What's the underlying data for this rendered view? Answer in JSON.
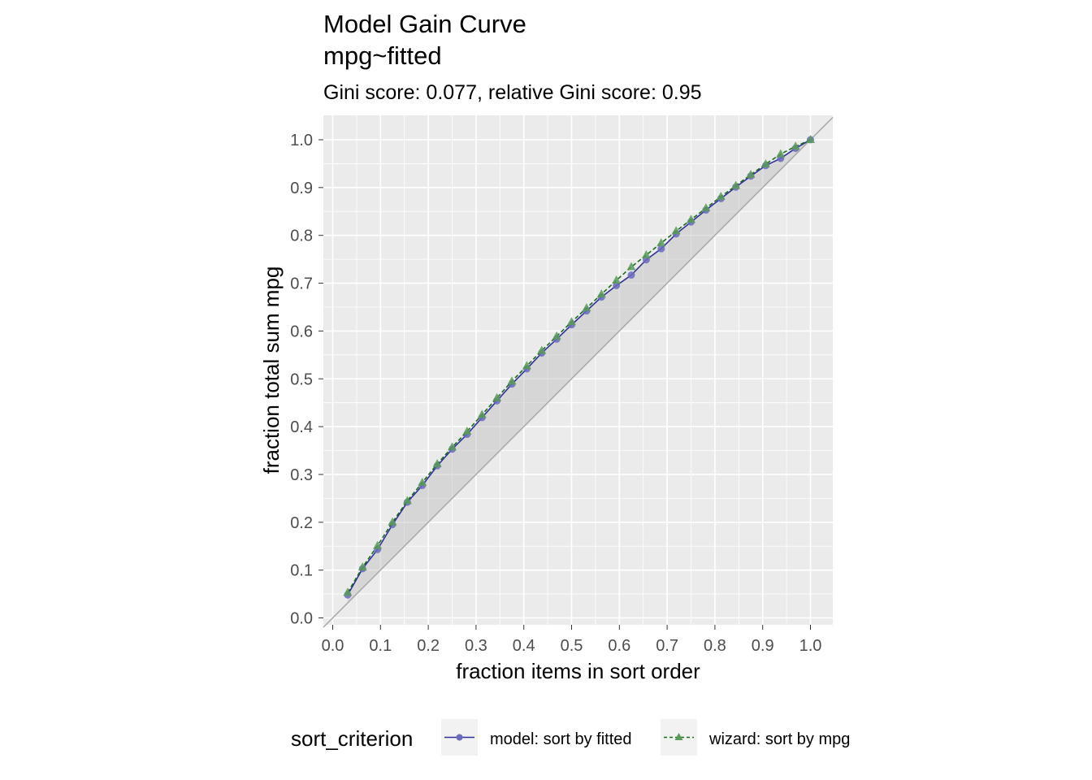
{
  "chart_data": {
    "type": "line",
    "title": "Model Gain Curve",
    "title_line2": "mpg~fitted",
    "subtitle": "Gini score: 0.077, relative Gini score: 0.95",
    "xlabel": "fraction items in sort order",
    "ylabel": "fraction total sum mpg",
    "xlim": [
      0,
      1
    ],
    "ylim": [
      0,
      1
    ],
    "x_ticks": [
      "0.0",
      "0.1",
      "0.2",
      "0.3",
      "0.4",
      "0.5",
      "0.6",
      "0.7",
      "0.8",
      "0.9",
      "1.0"
    ],
    "y_ticks": [
      "0.0",
      "0.1",
      "0.2",
      "0.3",
      "0.4",
      "0.5",
      "0.6",
      "0.7",
      "0.8",
      "0.9",
      "1.0"
    ],
    "grid": true,
    "reference_line": "diagonal y = x",
    "shaded_area": "between model curve and diagonal",
    "legend": {
      "title": "sort_criterion",
      "position": "bottom"
    },
    "x": [
      0.03125,
      0.0625,
      0.09375,
      0.125,
      0.15625,
      0.1875,
      0.21875,
      0.25,
      0.28125,
      0.3125,
      0.34375,
      0.375,
      0.40625,
      0.4375,
      0.46875,
      0.5,
      0.53125,
      0.5625,
      0.59375,
      0.625,
      0.65625,
      0.6875,
      0.71875,
      0.75,
      0.78125,
      0.8125,
      0.84375,
      0.875,
      0.90625,
      0.9375,
      0.96875,
      1.0
    ],
    "series": [
      {
        "name": "model: sort by fitted",
        "color": "#2f2f9a",
        "marker_color": "#6a6abf",
        "marker": "circle",
        "line_style": "solid",
        "values": [
          0.048,
          0.103,
          0.143,
          0.195,
          0.242,
          0.277,
          0.318,
          0.353,
          0.384,
          0.419,
          0.454,
          0.489,
          0.521,
          0.554,
          0.583,
          0.613,
          0.642,
          0.671,
          0.695,
          0.717,
          0.749,
          0.772,
          0.803,
          0.828,
          0.853,
          0.877,
          0.901,
          0.924,
          0.946,
          0.961,
          0.982,
          1.0
        ]
      },
      {
        "name": "wizard: sort by mpg",
        "color": "#1a6b1a",
        "marker_color": "#5a9a5a",
        "marker": "triangle",
        "line_style": "dashed",
        "values": [
          0.053,
          0.106,
          0.151,
          0.2,
          0.245,
          0.283,
          0.322,
          0.357,
          0.39,
          0.425,
          0.46,
          0.495,
          0.527,
          0.559,
          0.589,
          0.619,
          0.648,
          0.677,
          0.706,
          0.734,
          0.759,
          0.784,
          0.809,
          0.833,
          0.857,
          0.881,
          0.904,
          0.927,
          0.949,
          0.97,
          0.986,
          1.0
        ]
      }
    ]
  }
}
